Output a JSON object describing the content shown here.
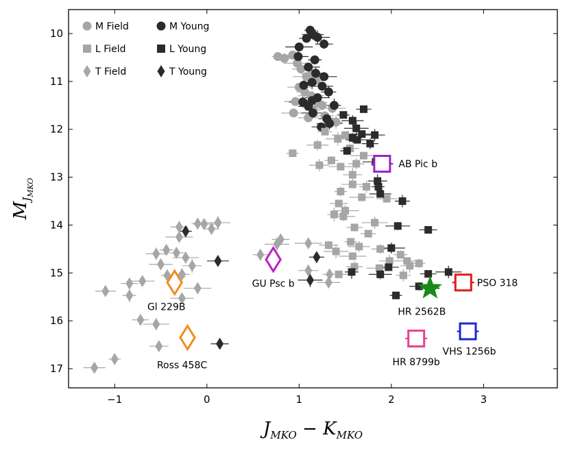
{
  "chart_data": {
    "type": "scatter",
    "title": "",
    "xlabel": {
      "main": "J",
      "sub1": "MKO",
      "minus": " − ",
      "main2": "K",
      "sub2": "MKO"
    },
    "ylabel": {
      "main": "M",
      "sub": "J",
      "subsub": "MKO"
    },
    "xlim": [
      -1.5,
      3.8
    ],
    "ylim": [
      17.4,
      9.5
    ],
    "y_inverted": true,
    "xticks": [
      -1,
      0,
      1,
      2,
      3
    ],
    "xtick_labels": [
      "−1",
      "0",
      "1",
      "2",
      "3"
    ],
    "yticks": [
      10,
      11,
      12,
      13,
      14,
      15,
      16,
      17
    ],
    "ytick_labels": [
      "10",
      "11",
      "12",
      "13",
      "14",
      "15",
      "16",
      "17"
    ],
    "legend": {
      "placement": "top-left",
      "entries": [
        {
          "label": "M Field",
          "marker": "circle",
          "color": "#a6a6a6"
        },
        {
          "label": "M Young",
          "marker": "circle",
          "color": "#2b2b2b"
        },
        {
          "label": "L Field",
          "marker": "square",
          "color": "#a6a6a6"
        },
        {
          "label": "L Young",
          "marker": "square",
          "color": "#2b2b2b"
        },
        {
          "label": "T Field",
          "marker": "diamond",
          "color": "#a6a6a6"
        },
        {
          "label": "T Young",
          "marker": "diamond",
          "color": "#2b2b2b"
        }
      ]
    },
    "series": [
      {
        "name": "M Field",
        "marker": "circle",
        "color": "#a6a6a6",
        "points": [
          {
            "x": 0.77,
            "y": 10.48
          },
          {
            "x": 0.84,
            "y": 10.52
          },
          {
            "x": 0.93,
            "y": 10.45
          },
          {
            "x": 0.98,
            "y": 10.62
          },
          {
            "x": 1.02,
            "y": 10.74
          },
          {
            "x": 1.08,
            "y": 10.9
          },
          {
            "x": 1.14,
            "y": 10.84
          },
          {
            "x": 1.18,
            "y": 10.98
          },
          {
            "x": 1.0,
            "y": 11.12
          },
          {
            "x": 1.06,
            "y": 11.22
          },
          {
            "x": 1.13,
            "y": 11.3
          },
          {
            "x": 1.2,
            "y": 11.44
          },
          {
            "x": 1.25,
            "y": 11.5
          },
          {
            "x": 0.96,
            "y": 11.42
          },
          {
            "x": 1.15,
            "y": 11.6
          },
          {
            "x": 0.94,
            "y": 11.66
          },
          {
            "x": 1.28,
            "y": 11.72
          },
          {
            "x": 1.36,
            "y": 11.56
          },
          {
            "x": 1.1,
            "y": 11.76
          },
          {
            "x": 1.4,
            "y": 11.85
          }
        ]
      },
      {
        "name": "M Young",
        "marker": "circle",
        "color": "#2b2b2b",
        "points": [
          {
            "x": 1.12,
            "y": 9.93
          },
          {
            "x": 1.15,
            "y": 10.02
          },
          {
            "x": 1.08,
            "y": 10.1
          },
          {
            "x": 1.2,
            "y": 10.08
          },
          {
            "x": 1.27,
            "y": 10.22
          },
          {
            "x": 1.0,
            "y": 10.28
          },
          {
            "x": 0.99,
            "y": 10.48
          },
          {
            "x": 1.17,
            "y": 10.55
          },
          {
            "x": 1.1,
            "y": 10.7
          },
          {
            "x": 1.18,
            "y": 10.83
          },
          {
            "x": 1.27,
            "y": 10.9
          },
          {
            "x": 1.14,
            "y": 11.02
          },
          {
            "x": 1.05,
            "y": 11.08
          },
          {
            "x": 1.25,
            "y": 11.1
          },
          {
            "x": 1.32,
            "y": 11.22
          },
          {
            "x": 1.2,
            "y": 11.34
          },
          {
            "x": 1.14,
            "y": 11.4
          },
          {
            "x": 1.04,
            "y": 11.43
          },
          {
            "x": 1.1,
            "y": 11.52
          },
          {
            "x": 1.38,
            "y": 11.5
          },
          {
            "x": 1.15,
            "y": 11.66
          },
          {
            "x": 1.3,
            "y": 11.78
          },
          {
            "x": 1.33,
            "y": 11.88
          },
          {
            "x": 1.24,
            "y": 11.95
          }
        ]
      },
      {
        "name": "L Field",
        "marker": "square",
        "color": "#a6a6a6",
        "points": [
          {
            "x": 0.93,
            "y": 12.5
          },
          {
            "x": 1.2,
            "y": 12.33
          },
          {
            "x": 1.28,
            "y": 12.05
          },
          {
            "x": 1.42,
            "y": 12.2
          },
          {
            "x": 1.55,
            "y": 12.4
          },
          {
            "x": 1.5,
            "y": 12.12
          },
          {
            "x": 1.22,
            "y": 12.75
          },
          {
            "x": 1.35,
            "y": 12.65
          },
          {
            "x": 1.45,
            "y": 12.78
          },
          {
            "x": 1.62,
            "y": 12.72
          },
          {
            "x": 1.7,
            "y": 12.55
          },
          {
            "x": 1.58,
            "y": 12.95
          },
          {
            "x": 1.45,
            "y": 13.3
          },
          {
            "x": 1.58,
            "y": 13.15
          },
          {
            "x": 1.73,
            "y": 13.2
          },
          {
            "x": 1.68,
            "y": 13.42
          },
          {
            "x": 1.43,
            "y": 13.55
          },
          {
            "x": 1.5,
            "y": 13.7
          },
          {
            "x": 1.95,
            "y": 13.45
          },
          {
            "x": 1.38,
            "y": 13.78
          },
          {
            "x": 1.48,
            "y": 13.82
          },
          {
            "x": 1.6,
            "y": 14.05
          },
          {
            "x": 1.82,
            "y": 13.95
          },
          {
            "x": 1.32,
            "y": 14.42
          },
          {
            "x": 1.56,
            "y": 14.35
          },
          {
            "x": 1.65,
            "y": 14.45
          },
          {
            "x": 1.75,
            "y": 14.18
          },
          {
            "x": 1.4,
            "y": 14.55
          },
          {
            "x": 1.88,
            "y": 14.5
          },
          {
            "x": 1.58,
            "y": 14.65
          },
          {
            "x": 1.98,
            "y": 14.75
          },
          {
            "x": 2.1,
            "y": 14.62
          },
          {
            "x": 2.17,
            "y": 14.75
          },
          {
            "x": 1.6,
            "y": 14.87
          },
          {
            "x": 1.87,
            "y": 14.9
          },
          {
            "x": 2.2,
            "y": 14.85
          },
          {
            "x": 2.3,
            "y": 14.8
          },
          {
            "x": 1.43,
            "y": 15.03
          },
          {
            "x": 2.13,
            "y": 15.05
          }
        ]
      },
      {
        "name": "L Young",
        "marker": "square",
        "color": "#2b2b2b",
        "points": [
          {
            "x": 1.48,
            "y": 11.7
          },
          {
            "x": 1.58,
            "y": 11.82
          },
          {
            "x": 1.7,
            "y": 11.58
          },
          {
            "x": 1.62,
            "y": 11.98
          },
          {
            "x": 1.58,
            "y": 12.18
          },
          {
            "x": 1.68,
            "y": 12.1
          },
          {
            "x": 1.82,
            "y": 12.12
          },
          {
            "x": 1.52,
            "y": 12.45
          },
          {
            "x": 1.63,
            "y": 12.22
          },
          {
            "x": 1.77,
            "y": 12.3
          },
          {
            "x": 1.83,
            "y": 12.68
          },
          {
            "x": 1.85,
            "y": 13.08
          },
          {
            "x": 1.86,
            "y": 13.2
          },
          {
            "x": 1.88,
            "y": 13.35
          },
          {
            "x": 2.12,
            "y": 13.5
          },
          {
            "x": 2.07,
            "y": 14.02
          },
          {
            "x": 2.4,
            "y": 14.1
          },
          {
            "x": 2.0,
            "y": 14.48
          },
          {
            "x": 1.97,
            "y": 14.88
          },
          {
            "x": 1.57,
            "y": 14.98
          },
          {
            "x": 1.88,
            "y": 15.03
          },
          {
            "x": 2.4,
            "y": 15.02
          },
          {
            "x": 2.62,
            "y": 14.98
          },
          {
            "x": 2.3,
            "y": 15.28
          },
          {
            "x": 2.05,
            "y": 15.47
          }
        ]
      },
      {
        "name": "T Field",
        "marker": "diamond",
        "color": "#a6a6a6",
        "points": [
          {
            "x": -0.1,
            "y": 13.97
          },
          {
            "x": -0.03,
            "y": 13.98
          },
          {
            "x": 0.05,
            "y": 14.08
          },
          {
            "x": 0.12,
            "y": 13.95
          },
          {
            "x": -0.3,
            "y": 14.04
          },
          {
            "x": -0.3,
            "y": 14.25
          },
          {
            "x": -0.55,
            "y": 14.6
          },
          {
            "x": -0.44,
            "y": 14.52
          },
          {
            "x": -0.5,
            "y": 14.82
          },
          {
            "x": -0.33,
            "y": 14.58
          },
          {
            "x": -0.23,
            "y": 14.68
          },
          {
            "x": -0.16,
            "y": 14.85
          },
          {
            "x": -0.43,
            "y": 15.05
          },
          {
            "x": -0.35,
            "y": 15.08
          },
          {
            "x": -0.27,
            "y": 15.03
          },
          {
            "x": -0.7,
            "y": 15.17
          },
          {
            "x": -0.84,
            "y": 15.22
          },
          {
            "x": -0.1,
            "y": 15.32
          },
          {
            "x": -1.1,
            "y": 15.38
          },
          {
            "x": -0.84,
            "y": 15.47
          },
          {
            "x": -0.27,
            "y": 15.53
          },
          {
            "x": -0.72,
            "y": 15.98
          },
          {
            "x": -0.55,
            "y": 16.07
          },
          {
            "x": -0.52,
            "y": 16.53
          },
          {
            "x": -1.0,
            "y": 16.8
          },
          {
            "x": -1.22,
            "y": 16.98
          },
          {
            "x": 0.58,
            "y": 14.62
          },
          {
            "x": 0.76,
            "y": 14.4
          },
          {
            "x": 0.8,
            "y": 14.3
          },
          {
            "x": 1.1,
            "y": 14.38
          },
          {
            "x": 1.1,
            "y": 14.95
          },
          {
            "x": 1.33,
            "y": 15.03
          },
          {
            "x": 1.32,
            "y": 15.2
          }
        ]
      },
      {
        "name": "T Young",
        "marker": "diamond",
        "color": "#2b2b2b",
        "points": [
          {
            "x": -0.23,
            "y": 14.13
          },
          {
            "x": 0.12,
            "y": 14.75
          },
          {
            "x": 1.19,
            "y": 14.67
          },
          {
            "x": 1.12,
            "y": 15.15
          },
          {
            "x": 0.14,
            "y": 16.48
          }
        ]
      }
    ],
    "highlighted_objects": [
      {
        "label": "AB Pic b",
        "x": 1.9,
        "y": 12.72,
        "marker": "open-square",
        "color": "#9a22c8"
      },
      {
        "label": "PSO 318",
        "x": 2.78,
        "y": 15.2,
        "marker": "open-square",
        "color": "#e11a1a"
      },
      {
        "label": "HR 2562B",
        "x": 2.42,
        "y": 15.32,
        "marker": "star",
        "color": "#1a8a1a"
      },
      {
        "label": "HR 8799b",
        "x": 2.27,
        "y": 16.37,
        "marker": "open-square",
        "color": "#ea3f93"
      },
      {
        "label": "VHS 1256b",
        "x": 2.83,
        "y": 16.22,
        "marker": "open-square",
        "color": "#1b25d4"
      },
      {
        "label": "GU Psc b",
        "x": 0.72,
        "y": 14.72,
        "marker": "open-diamond",
        "color": "#b820c4"
      },
      {
        "label": "Gl 229B",
        "x": -0.35,
        "y": 15.2,
        "marker": "open-diamond",
        "color": "#f08c1a"
      },
      {
        "label": "Ross 458C",
        "x": -0.21,
        "y": 16.35,
        "marker": "open-diamond",
        "color": "#f08c1a"
      }
    ]
  }
}
